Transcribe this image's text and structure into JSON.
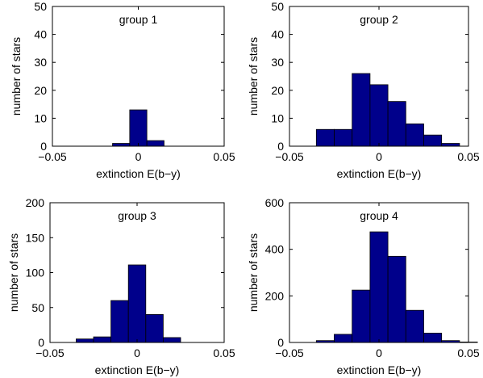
{
  "chart_data": [
    {
      "type": "bar",
      "title": "group 1",
      "xlabel": "extinction E(b−y)",
      "ylabel": "number of stars",
      "xlim": [
        -0.05,
        0.05
      ],
      "ylim": [
        0,
        50
      ],
      "xticks": [
        "−0.05",
        "0",
        "0.05"
      ],
      "yticks": [
        "0",
        "10",
        "20",
        "30",
        "40",
        "50"
      ],
      "bins": [
        {
          "x0": -0.015,
          "x1": -0.005,
          "value": 1
        },
        {
          "x0": -0.005,
          "x1": 0.005,
          "value": 13
        },
        {
          "x0": 0.005,
          "x1": 0.015,
          "value": 2
        }
      ],
      "bar_color": "#00008B"
    },
    {
      "type": "bar",
      "title": "group 2",
      "xlabel": "extinction E(b−y)",
      "ylabel": "number of stars",
      "xlim": [
        -0.05,
        0.05
      ],
      "ylim": [
        0,
        50
      ],
      "xticks": [
        "−0.05",
        "0",
        "0.05"
      ],
      "yticks": [
        "0",
        "10",
        "20",
        "30",
        "40",
        "50"
      ],
      "bins": [
        {
          "x0": -0.035,
          "x1": -0.025,
          "value": 6
        },
        {
          "x0": -0.025,
          "x1": -0.015,
          "value": 6
        },
        {
          "x0": -0.015,
          "x1": -0.005,
          "value": 26
        },
        {
          "x0": -0.005,
          "x1": 0.005,
          "value": 22
        },
        {
          "x0": 0.005,
          "x1": 0.015,
          "value": 16
        },
        {
          "x0": 0.015,
          "x1": 0.025,
          "value": 8
        },
        {
          "x0": 0.025,
          "x1": 0.035,
          "value": 4
        },
        {
          "x0": 0.035,
          "x1": 0.045,
          "value": 1
        }
      ],
      "bar_color": "#00008B"
    },
    {
      "type": "bar",
      "title": "group 3",
      "xlabel": "extinction E(b−y)",
      "ylabel": "number of stars",
      "xlim": [
        -0.05,
        0.05
      ],
      "ylim": [
        0,
        200
      ],
      "xticks": [
        "−0.05",
        "0",
        "0.05"
      ],
      "yticks": [
        "0",
        "50",
        "100",
        "150",
        "200"
      ],
      "bins": [
        {
          "x0": -0.035,
          "x1": -0.025,
          "value": 5
        },
        {
          "x0": -0.025,
          "x1": -0.015,
          "value": 8
        },
        {
          "x0": -0.015,
          "x1": -0.005,
          "value": 60
        },
        {
          "x0": -0.005,
          "x1": 0.005,
          "value": 111
        },
        {
          "x0": 0.005,
          "x1": 0.015,
          "value": 40
        },
        {
          "x0": 0.015,
          "x1": 0.025,
          "value": 7
        }
      ],
      "bar_color": "#00008B"
    },
    {
      "type": "bar",
      "title": "group 4",
      "xlabel": "extinction E(b−y)",
      "ylabel": "number of stars",
      "xlim": [
        -0.05,
        0.05
      ],
      "ylim": [
        0,
        600
      ],
      "xticks": [
        "−0.05",
        "0",
        "0.05"
      ],
      "yticks": [
        "0",
        "200",
        "400",
        "600"
      ],
      "bins": [
        {
          "x0": -0.035,
          "x1": -0.025,
          "value": 8
        },
        {
          "x0": -0.025,
          "x1": -0.015,
          "value": 35
        },
        {
          "x0": -0.015,
          "x1": -0.005,
          "value": 225
        },
        {
          "x0": -0.005,
          "x1": 0.005,
          "value": 475
        },
        {
          "x0": 0.005,
          "x1": 0.015,
          "value": 370
        },
        {
          "x0": 0.015,
          "x1": 0.025,
          "value": 138
        },
        {
          "x0": 0.025,
          "x1": 0.035,
          "value": 40
        },
        {
          "x0": 0.035,
          "x1": 0.045,
          "value": 8
        },
        {
          "x0": 0.045,
          "x1": 0.055,
          "value": 2
        }
      ],
      "bar_color": "#00008B"
    }
  ]
}
